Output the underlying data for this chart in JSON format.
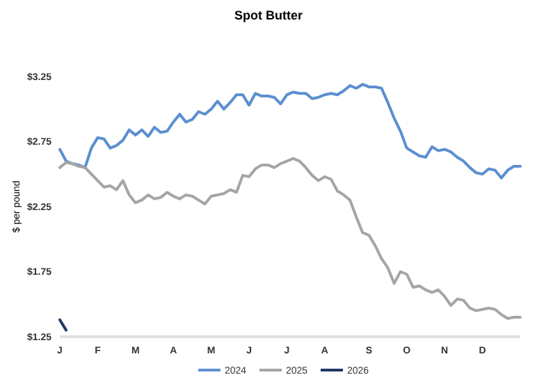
{
  "chart_data": {
    "type": "line",
    "title": "Spot Butter",
    "ylabel": "$ per pound",
    "ylim": [
      1.25,
      3.25
    ],
    "yticks": [
      {
        "value": 1.25,
        "label": "$1.25"
      },
      {
        "value": 1.75,
        "label": "$1.75"
      },
      {
        "value": 2.25,
        "label": "$2.25"
      },
      {
        "value": 2.75,
        "label": "$2.75"
      },
      {
        "value": 3.25,
        "label": "$3.25"
      }
    ],
    "categories": [
      "J",
      null,
      null,
      null,
      null,
      null,
      "F",
      null,
      null,
      null,
      null,
      null,
      "M",
      null,
      null,
      null,
      null,
      null,
      "A",
      null,
      null,
      null,
      null,
      null,
      "M",
      null,
      null,
      null,
      null,
      null,
      "J",
      null,
      null,
      null,
      null,
      null,
      "J",
      null,
      null,
      null,
      null,
      null,
      "A",
      null,
      null,
      null,
      null,
      null,
      null,
      "S",
      null,
      null,
      null,
      null,
      null,
      "O",
      null,
      null,
      null,
      null,
      null,
      "N",
      null,
      null,
      null,
      null,
      null,
      "D",
      null,
      null,
      null,
      null,
      null,
      null
    ],
    "grid": false,
    "legend": "bottom",
    "line_style": "solid",
    "marker": "none",
    "series": [
      {
        "name": "2024",
        "color": "#5b8fd0",
        "values": [
          2.69,
          2.6,
          2.58,
          2.57,
          2.55,
          2.7,
          2.78,
          2.77,
          2.7,
          2.72,
          2.76,
          2.84,
          2.8,
          2.84,
          2.79,
          2.86,
          2.82,
          2.83,
          2.9,
          2.96,
          2.9,
          2.92,
          2.98,
          2.96,
          3.0,
          3.06,
          3.0,
          3.05,
          3.11,
          3.11,
          3.03,
          3.12,
          3.1,
          3.1,
          3.09,
          3.04,
          3.11,
          3.13,
          3.12,
          3.12,
          3.08,
          3.09,
          3.11,
          3.12,
          3.11,
          3.14,
          3.18,
          3.16,
          3.19,
          3.17,
          3.17,
          3.16,
          3.05,
          2.93,
          2.83,
          2.7,
          2.67,
          2.64,
          2.63,
          2.71,
          2.68,
          2.69,
          2.67,
          2.63,
          2.6,
          2.55,
          2.51,
          2.5,
          2.54,
          2.53,
          2.47,
          2.53,
          2.56,
          2.56
        ]
      },
      {
        "name": "2025",
        "color": "#a5a5a5",
        "values": [
          2.55,
          2.59,
          2.58,
          2.56,
          2.55,
          2.5,
          2.45,
          2.4,
          2.41,
          2.38,
          2.45,
          2.34,
          2.28,
          2.3,
          2.34,
          2.31,
          2.32,
          2.36,
          2.33,
          2.31,
          2.34,
          2.33,
          2.3,
          2.27,
          2.33,
          2.34,
          2.35,
          2.38,
          2.36,
          2.49,
          2.48,
          2.54,
          2.57,
          2.57,
          2.55,
          2.58,
          2.6,
          2.62,
          2.6,
          2.55,
          2.49,
          2.45,
          2.48,
          2.46,
          2.37,
          2.34,
          2.3,
          2.17,
          2.05,
          2.03,
          1.95,
          1.85,
          1.78,
          1.66,
          1.75,
          1.73,
          1.63,
          1.64,
          1.61,
          1.59,
          1.61,
          1.56,
          1.49,
          1.54,
          1.53,
          1.47,
          1.45,
          1.46,
          1.47,
          1.46,
          1.42,
          1.39,
          1.4,
          1.4
        ]
      },
      {
        "name": "2026",
        "color": "#1f3864",
        "values": [
          1.38,
          1.3,
          null,
          null,
          null,
          null,
          null,
          null,
          null,
          null,
          null,
          null,
          null,
          null,
          null,
          null,
          null,
          null,
          null,
          null,
          null,
          null,
          null,
          null,
          null,
          null,
          null,
          null,
          null,
          null,
          null,
          null,
          null,
          null,
          null,
          null,
          null,
          null,
          null,
          null,
          null,
          null,
          null,
          null,
          null,
          null,
          null,
          null,
          null,
          null,
          null,
          null,
          null,
          null,
          null,
          null,
          null,
          null,
          null,
          null,
          null,
          null,
          null,
          null,
          null,
          null,
          null,
          null,
          null,
          null,
          null,
          null,
          null,
          null
        ]
      }
    ]
  }
}
